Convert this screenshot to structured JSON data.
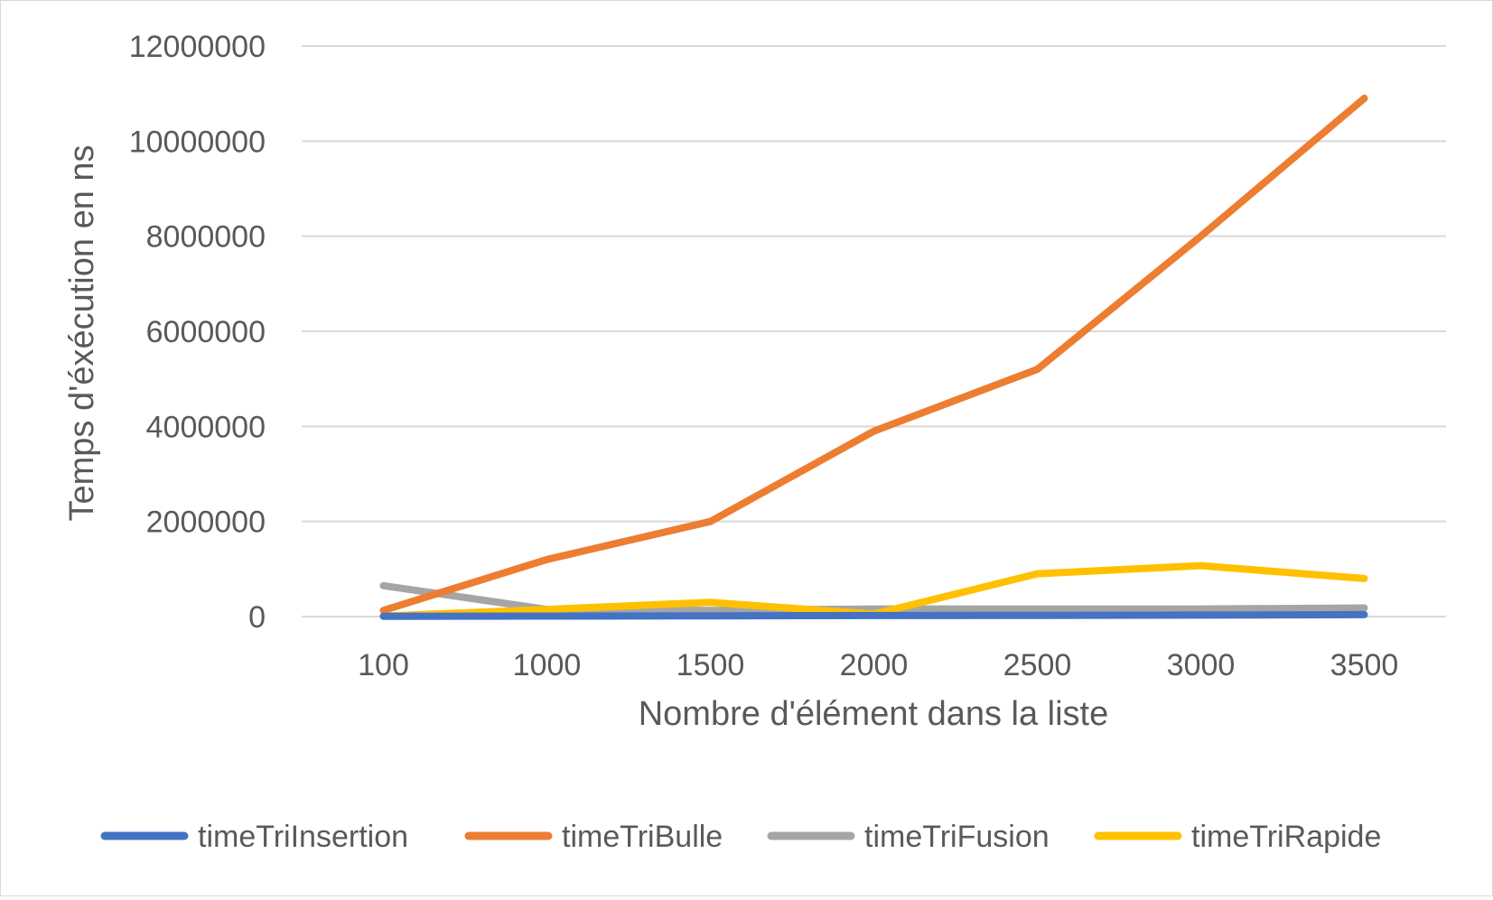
{
  "chart_data": {
    "type": "line",
    "categories": [
      "100",
      "1000",
      "1500",
      "2000",
      "2500",
      "3000",
      "3500"
    ],
    "xlabel": "Nombre d'élément dans la liste",
    "ylabel": "Temps d'éxécution en ns",
    "ylim": [
      0,
      12000000
    ],
    "yticks": [
      "0",
      "2000000",
      "4000000",
      "6000000",
      "8000000",
      "10000000",
      "12000000"
    ],
    "grid": true,
    "legend_position": "bottom",
    "series": [
      {
        "name": "timeTriInsertion",
        "color": "#4472C4",
        "values": [
          5000,
          10000,
          15000,
          20000,
          25000,
          30000,
          40000
        ]
      },
      {
        "name": "timeTriBulle",
        "color": "#ED7D31",
        "values": [
          130000,
          1200000,
          2000000,
          3900000,
          5200000,
          8000000,
          10900000
        ]
      },
      {
        "name": "timeTriFusion",
        "color": "#A5A5A5",
        "values": [
          650000,
          150000,
          130000,
          160000,
          160000,
          160000,
          180000
        ]
      },
      {
        "name": "timeTriRapide",
        "color": "#FFC000",
        "values": [
          10000,
          150000,
          300000,
          50000,
          900000,
          1070000,
          800000
        ]
      }
    ]
  }
}
